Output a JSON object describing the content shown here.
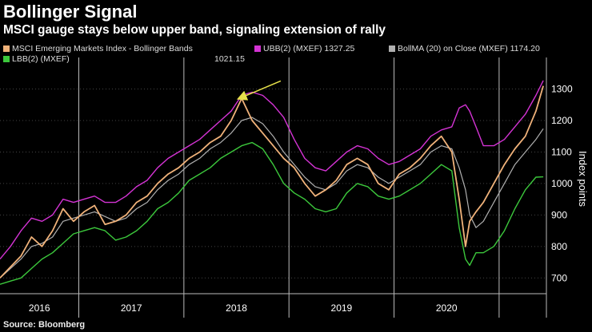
{
  "title": "Bollinger Signal",
  "subtitle": "MSCI gauge stays below upper band, signaling extension of rally",
  "source": "Source: Bloomberg",
  "legend": {
    "index_label": "MSCI Emerging Markets Index - Bollinger Bands",
    "ubb_label": "UBB(2) (MXEF) 1327.25",
    "bollma_label": "BollMA (20)  on Close (MXEF) 1174.20",
    "lbb_label": "LBB(2) (MXEF)",
    "lbb_value": "1021.15"
  },
  "colors": {
    "price": "#f0b27a",
    "ubb": "#d433d4",
    "bollma": "#b0b0b0",
    "lbb": "#3cc83c",
    "arrow": "#e6e04a",
    "grid": "#444444"
  },
  "chart_data": {
    "type": "line",
    "title": "Bollinger Signal",
    "ylabel": "Index points",
    "ylim": [
      650,
      1380
    ],
    "yticks": [
      "700",
      "800",
      "900",
      "1000",
      "1100",
      "1200",
      "1300"
    ],
    "xlim": [
      2015.75,
      2020.95
    ],
    "year_labels": [
      "2016",
      "2017",
      "2018",
      "2019",
      "2020"
    ],
    "year_boundaries": [
      2016.5,
      2017.5,
      2018.5,
      2019.5,
      2020.5
    ],
    "series": [
      {
        "name": "MSCI Emerging Markets Index",
        "x": [
          2015.75,
          2015.85,
          2015.95,
          2016.05,
          2016.15,
          2016.25,
          2016.35,
          2016.45,
          2016.55,
          2016.65,
          2016.75,
          2016.85,
          2016.95,
          2017.05,
          2017.15,
          2017.25,
          2017.35,
          2017.45,
          2017.55,
          2017.65,
          2017.75,
          2017.85,
          2017.95,
          2018.05,
          2018.15,
          2018.25,
          2018.35,
          2018.45,
          2018.55,
          2018.65,
          2018.75,
          2018.85,
          2018.95,
          2019.05,
          2019.15,
          2019.25,
          2019.35,
          2019.45,
          2019.55,
          2019.65,
          2019.75,
          2019.85,
          2019.95,
          2020.05,
          2020.12,
          2020.18,
          2020.22,
          2020.28,
          2020.35,
          2020.45,
          2020.55,
          2020.65,
          2020.75,
          2020.85,
          2020.92
        ],
        "values": [
          700,
          735,
          770,
          830,
          800,
          850,
          920,
          880,
          910,
          930,
          870,
          880,
          900,
          940,
          960,
          1000,
          1030,
          1050,
          1080,
          1100,
          1130,
          1150,
          1200,
          1270,
          1200,
          1160,
          1120,
          1080,
          1050,
          1000,
          960,
          980,
          1010,
          1060,
          1080,
          1060,
          1000,
          980,
          1030,
          1050,
          1080,
          1120,
          1150,
          1100,
          950,
          800,
          880,
          910,
          940,
          1000,
          1060,
          1110,
          1150,
          1230,
          1310
        ]
      },
      {
        "name": "UBB(2) (MXEF)",
        "x": [
          2015.75,
          2015.85,
          2015.95,
          2016.05,
          2016.15,
          2016.25,
          2016.35,
          2016.45,
          2016.55,
          2016.65,
          2016.75,
          2016.85,
          2016.95,
          2017.05,
          2017.15,
          2017.25,
          2017.35,
          2017.45,
          2017.55,
          2017.65,
          2017.75,
          2017.85,
          2017.95,
          2018.05,
          2018.15,
          2018.25,
          2018.35,
          2018.45,
          2018.55,
          2018.65,
          2018.75,
          2018.85,
          2018.95,
          2019.05,
          2019.15,
          2019.25,
          2019.35,
          2019.45,
          2019.55,
          2019.65,
          2019.75,
          2019.85,
          2019.95,
          2020.05,
          2020.12,
          2020.18,
          2020.22,
          2020.28,
          2020.35,
          2020.45,
          2020.55,
          2020.65,
          2020.75,
          2020.85,
          2020.92
        ],
        "values": [
          760,
          800,
          850,
          890,
          880,
          900,
          950,
          940,
          950,
          960,
          940,
          940,
          960,
          990,
          1010,
          1050,
          1080,
          1100,
          1120,
          1140,
          1170,
          1200,
          1230,
          1280,
          1290,
          1280,
          1250,
          1210,
          1140,
          1080,
          1050,
          1040,
          1070,
          1100,
          1120,
          1110,
          1080,
          1060,
          1070,
          1090,
          1110,
          1150,
          1170,
          1180,
          1240,
          1250,
          1230,
          1180,
          1120,
          1120,
          1140,
          1180,
          1220,
          1280,
          1327
        ]
      },
      {
        "name": "BollMA (20) on Close (MXEF)",
        "x": [
          2015.75,
          2015.85,
          2015.95,
          2016.05,
          2016.15,
          2016.25,
          2016.35,
          2016.45,
          2016.55,
          2016.65,
          2016.75,
          2016.85,
          2016.95,
          2017.05,
          2017.15,
          2017.25,
          2017.35,
          2017.45,
          2017.55,
          2017.65,
          2017.75,
          2017.85,
          2017.95,
          2018.05,
          2018.15,
          2018.25,
          2018.35,
          2018.45,
          2018.55,
          2018.65,
          2018.75,
          2018.85,
          2018.95,
          2019.05,
          2019.15,
          2019.25,
          2019.35,
          2019.45,
          2019.55,
          2019.65,
          2019.75,
          2019.85,
          2019.95,
          2020.05,
          2020.12,
          2020.18,
          2020.22,
          2020.28,
          2020.35,
          2020.45,
          2020.55,
          2020.65,
          2020.75,
          2020.85,
          2020.92
        ],
        "values": [
          700,
          730,
          760,
          800,
          810,
          830,
          880,
          890,
          900,
          910,
          895,
          880,
          890,
          920,
          940,
          980,
          1010,
          1030,
          1060,
          1080,
          1110,
          1130,
          1160,
          1200,
          1210,
          1190,
          1150,
          1100,
          1060,
          1020,
          990,
          980,
          1000,
          1040,
          1060,
          1050,
          1020,
          1000,
          1020,
          1040,
          1060,
          1100,
          1120,
          1110,
          1050,
          980,
          900,
          860,
          880,
          940,
          1000,
          1060,
          1100,
          1140,
          1174
        ]
      },
      {
        "name": "LBB(2) (MXEF)",
        "x": [
          2015.75,
          2015.85,
          2015.95,
          2016.05,
          2016.15,
          2016.25,
          2016.35,
          2016.45,
          2016.55,
          2016.65,
          2016.75,
          2016.85,
          2016.95,
          2017.05,
          2017.15,
          2017.25,
          2017.35,
          2017.45,
          2017.55,
          2017.65,
          2017.75,
          2017.85,
          2017.95,
          2018.05,
          2018.15,
          2018.25,
          2018.35,
          2018.45,
          2018.55,
          2018.65,
          2018.75,
          2018.85,
          2018.95,
          2019.05,
          2019.15,
          2019.25,
          2019.35,
          2019.45,
          2019.55,
          2019.65,
          2019.75,
          2019.85,
          2019.95,
          2020.05,
          2020.12,
          2020.18,
          2020.22,
          2020.28,
          2020.35,
          2020.45,
          2020.55,
          2020.65,
          2020.75,
          2020.85,
          2020.92
        ],
        "values": [
          680,
          690,
          700,
          730,
          760,
          780,
          810,
          840,
          850,
          860,
          850,
          820,
          830,
          850,
          880,
          920,
          940,
          970,
          1010,
          1030,
          1050,
          1080,
          1100,
          1120,
          1130,
          1110,
          1060,
          1000,
          970,
          950,
          920,
          910,
          920,
          970,
          1000,
          990,
          960,
          950,
          960,
          980,
          1000,
          1030,
          1060,
          1040,
          860,
          760,
          740,
          780,
          780,
          800,
          850,
          920,
          980,
          1020,
          1021
        ]
      }
    ],
    "annotations": [
      {
        "type": "arrow",
        "points_to": [
          2017.98,
          1275
        ],
        "text": ""
      }
    ]
  }
}
